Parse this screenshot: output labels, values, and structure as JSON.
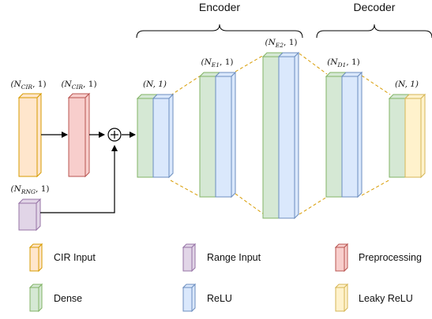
{
  "headers": {
    "encoder": "Encoder",
    "decoder": "Decoder"
  },
  "dimension_labels": {
    "cir_input": "(N_CIR, 1)",
    "preprocessing": "(N_CIR, 1)",
    "range_input": "(N_RNG, 1)",
    "first_block": "(N, 1)",
    "encoder_1": "(N_E1, 1)",
    "encoder_2": "(N_E2, 1)",
    "decoder_1": "(N_D1, 1)",
    "output_block": "(N, 1)"
  },
  "operators": {
    "sum_symbol": "+"
  },
  "legend": [
    {
      "key": "cir",
      "label": "CIR Input",
      "face": "#ffe6cc",
      "edge": "#d79b00"
    },
    {
      "key": "range",
      "label": "Range Input",
      "face": "#e1d5e7",
      "edge": "#9673a6"
    },
    {
      "key": "pre",
      "label": "Preprocessing",
      "face": "#f8cecc",
      "edge": "#b85450"
    },
    {
      "key": "dense",
      "label": "Dense",
      "face": "#d5e8d4",
      "edge": "#82b366"
    },
    {
      "key": "relu",
      "label": "ReLU",
      "face": "#dae8fc",
      "edge": "#6c8ebf"
    },
    {
      "key": "leaky",
      "label": "Leaky ReLU",
      "face": "#fff2cc",
      "edge": "#d6b656"
    }
  ],
  "colors": {
    "connector_dashed": "#d79b00",
    "arrow": "#000000"
  }
}
